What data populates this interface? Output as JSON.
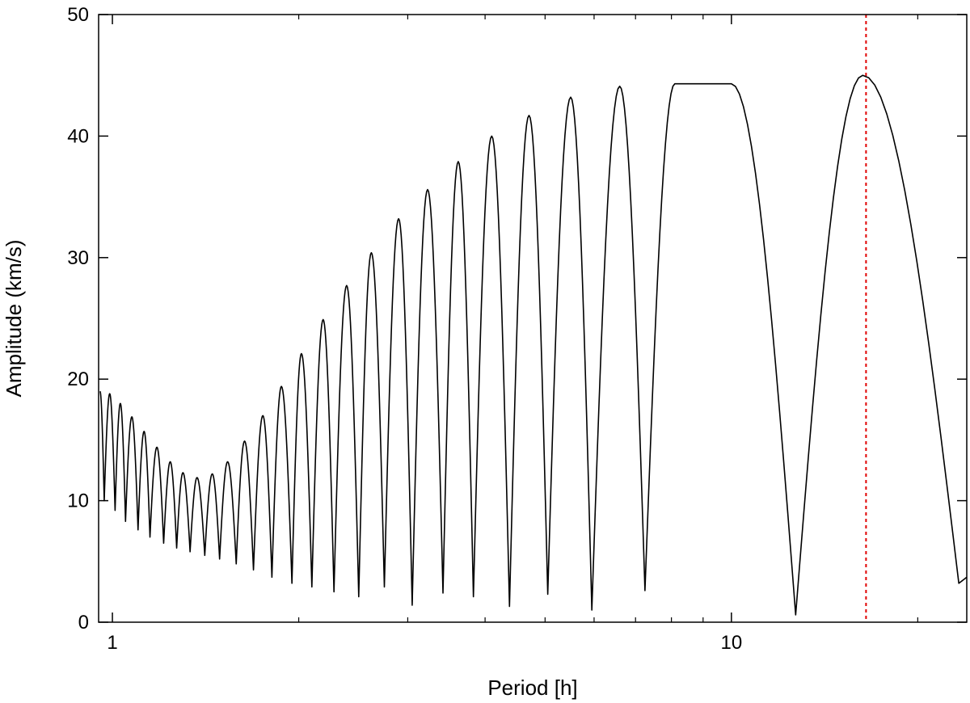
{
  "chart_data": {
    "type": "line",
    "title": "",
    "xlabel": "Period [h]",
    "ylabel": "Amplitude (km/s)",
    "x_scale": "log",
    "xlim": [
      0.95,
      24
    ],
    "ylim": [
      0,
      50
    ],
    "x_ticks": [
      {
        "value": 1,
        "label": "1"
      },
      {
        "value": 10,
        "label": "10"
      }
    ],
    "x_minor_ticks": [
      2,
      3,
      4,
      5,
      6,
      7,
      8,
      9,
      20
    ],
    "y_ticks": [
      {
        "value": 0,
        "label": "0"
      },
      {
        "value": 10,
        "label": "10"
      },
      {
        "value": 20,
        "label": "20"
      },
      {
        "value": 30,
        "label": "30"
      },
      {
        "value": 40,
        "label": "40"
      },
      {
        "value": 50,
        "label": "50"
      }
    ],
    "grid": false,
    "line_color": "#000000",
    "marker_color": "#e00000",
    "marker_line": {
      "x": 16.5,
      "style": "dotted"
    },
    "series": [
      {
        "peaks": [
          [
            0.955,
            19.0
          ],
          [
            0.99,
            18.8
          ],
          [
            1.03,
            18.0
          ],
          [
            1.075,
            16.9
          ],
          [
            1.125,
            15.7
          ],
          [
            1.18,
            14.4
          ],
          [
            1.24,
            13.2
          ],
          [
            1.3,
            12.3
          ],
          [
            1.37,
            11.9
          ],
          [
            1.45,
            12.2
          ],
          [
            1.535,
            13.2
          ],
          [
            1.635,
            14.9
          ],
          [
            1.75,
            17.0
          ],
          [
            1.875,
            19.4
          ],
          [
            2.02,
            22.1
          ],
          [
            2.19,
            24.9
          ],
          [
            2.39,
            27.7
          ],
          [
            2.62,
            30.4
          ],
          [
            2.9,
            33.2
          ],
          [
            3.23,
            35.6
          ],
          [
            3.62,
            37.9
          ],
          [
            4.1,
            40.0
          ],
          [
            4.71,
            41.7
          ],
          [
            5.5,
            43.2
          ],
          [
            6.6,
            44.1
          ],
          [
            8.1,
            44.3
          ],
          [
            10.0,
            44.3
          ],
          [
            16.3,
            45.0
          ]
        ],
        "troughs": [
          [
            0.97,
            10.0
          ],
          [
            1.01,
            9.2
          ],
          [
            1.05,
            8.3
          ],
          [
            1.1,
            7.6
          ],
          [
            1.15,
            7.0
          ],
          [
            1.21,
            6.5
          ],
          [
            1.27,
            6.1
          ],
          [
            1.335,
            5.8
          ],
          [
            1.41,
            5.5
          ],
          [
            1.49,
            5.2
          ],
          [
            1.585,
            4.8
          ],
          [
            1.69,
            4.3
          ],
          [
            1.81,
            3.7
          ],
          [
            1.95,
            3.2
          ],
          [
            2.1,
            2.9
          ],
          [
            2.28,
            2.5
          ],
          [
            2.5,
            2.1
          ],
          [
            2.75,
            2.9
          ],
          [
            3.05,
            1.4
          ],
          [
            3.42,
            2.4
          ],
          [
            3.83,
            2.1
          ],
          [
            4.38,
            1.3
          ],
          [
            5.05,
            2.3
          ],
          [
            5.95,
            1.0
          ],
          [
            7.25,
            2.6
          ],
          [
            12.7,
            0.6
          ],
          [
            23.3,
            3.2
          ]
        ],
        "end_point": [
          24.0,
          3.7
        ]
      }
    ]
  }
}
